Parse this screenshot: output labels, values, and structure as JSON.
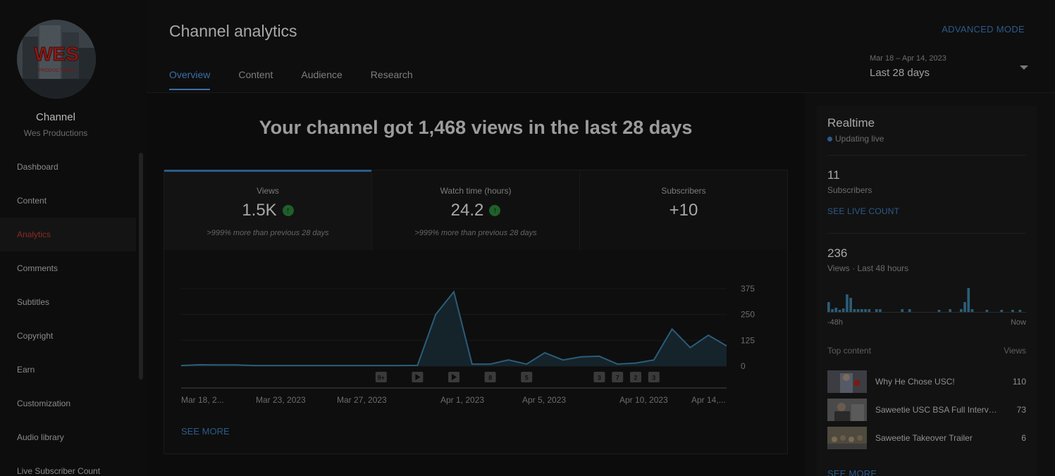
{
  "sidebar": {
    "channel_title": "Channel",
    "channel_name": "Wes Productions",
    "logo_text": "WES",
    "logo_subtext": "PRODUCTIONS",
    "items": [
      {
        "label": "Dashboard"
      },
      {
        "label": "Content"
      },
      {
        "label": "Analytics",
        "active": true
      },
      {
        "label": "Comments"
      },
      {
        "label": "Subtitles"
      },
      {
        "label": "Copyright"
      },
      {
        "label": "Earn"
      },
      {
        "label": "Customization"
      },
      {
        "label": "Audio library"
      },
      {
        "label": "Live Subscriber Count"
      }
    ]
  },
  "header": {
    "title": "Channel analytics",
    "advanced_mode": "ADVANCED MODE",
    "tabs": [
      {
        "label": "Overview",
        "active": true
      },
      {
        "label": "Content"
      },
      {
        "label": "Audience"
      },
      {
        "label": "Research"
      }
    ],
    "date_range": {
      "range": "Mar 18 – Apr 14, 2023",
      "label": "Last 28 days"
    }
  },
  "main": {
    "headline": "Your channel got 1,468 views in the last 28 days",
    "metrics": [
      {
        "label": "Views",
        "value": "1.5K",
        "trend": "up",
        "note": ">999% more than previous 28 days",
        "active": true
      },
      {
        "label": "Watch time (hours)",
        "value": "24.2",
        "trend": "up",
        "note": ">999% more than previous 28 days"
      },
      {
        "label": "Subscribers",
        "value": "+10"
      }
    ],
    "see_more": "SEE MORE"
  },
  "chart_data": {
    "type": "area",
    "series": [
      {
        "values": [
          3,
          7,
          6,
          6,
          3,
          3,
          3,
          3,
          3,
          3,
          3,
          3,
          3,
          4,
          250,
          360,
          10,
          10,
          30,
          10,
          65,
          30,
          45,
          48,
          10,
          15,
          30,
          180,
          90,
          150,
          98
        ]
      }
    ],
    "x_tick_labels": [
      "Mar 18, 2...",
      "Mar 23, 2023",
      "Mar 27, 2023",
      "Apr 1, 2023",
      "Apr 5, 2023",
      "Apr 10, 2023",
      "Apr 14,..."
    ],
    "y_ticks": [
      0,
      125,
      250,
      375
    ],
    "ylim": [
      0,
      375
    ],
    "markers": [
      {
        "index": 11,
        "kind": "badge",
        "label": "9+"
      },
      {
        "index": 13,
        "kind": "video"
      },
      {
        "index": 15,
        "kind": "video"
      },
      {
        "index": 17,
        "kind": "badge",
        "label": "8"
      },
      {
        "index": 19,
        "kind": "badge",
        "label": "5"
      },
      {
        "index": 23,
        "kind": "badge",
        "label": "3"
      },
      {
        "index": 24,
        "kind": "badge",
        "label": "7"
      },
      {
        "index": 25,
        "kind": "badge",
        "label": "2"
      },
      {
        "index": 26,
        "kind": "badge",
        "label": "3"
      }
    ],
    "colors": {
      "line": "#2b5d78",
      "fill": "#15232b",
      "grid": "#1a1a1a",
      "tick": "#6c6c6c"
    }
  },
  "realtime": {
    "title": "Realtime",
    "status": "Updating live",
    "subscribers": {
      "value": "11",
      "label": "Subscribers",
      "link": "SEE LIVE COUNT"
    },
    "views": {
      "value": "236",
      "label": "Views · Last 48 hours"
    },
    "bars": [
      14,
      4,
      6,
      3,
      5,
      25,
      20,
      4,
      4,
      4,
      4,
      4,
      0,
      4,
      4,
      0,
      0,
      0,
      0,
      0,
      4,
      0,
      4,
      0,
      0,
      0,
      0,
      0,
      0,
      0,
      3,
      0,
      0,
      4,
      0,
      0,
      4,
      14,
      34,
      4,
      0,
      0,
      0,
      3,
      0,
      0,
      0,
      3,
      0,
      0,
      3,
      0,
      3,
      0
    ],
    "axis_left": "-48h",
    "axis_right": "Now",
    "top_content": {
      "title": "Top content",
      "views_label": "Views",
      "items": [
        {
          "title": "Why He Chose USC!",
          "views": "110"
        },
        {
          "title": "Saweetie USC BSA Full Interview",
          "views": "73"
        },
        {
          "title": "Saweetie Takeover Trailer",
          "views": "6"
        }
      ]
    },
    "see_more": "SEE MORE"
  }
}
